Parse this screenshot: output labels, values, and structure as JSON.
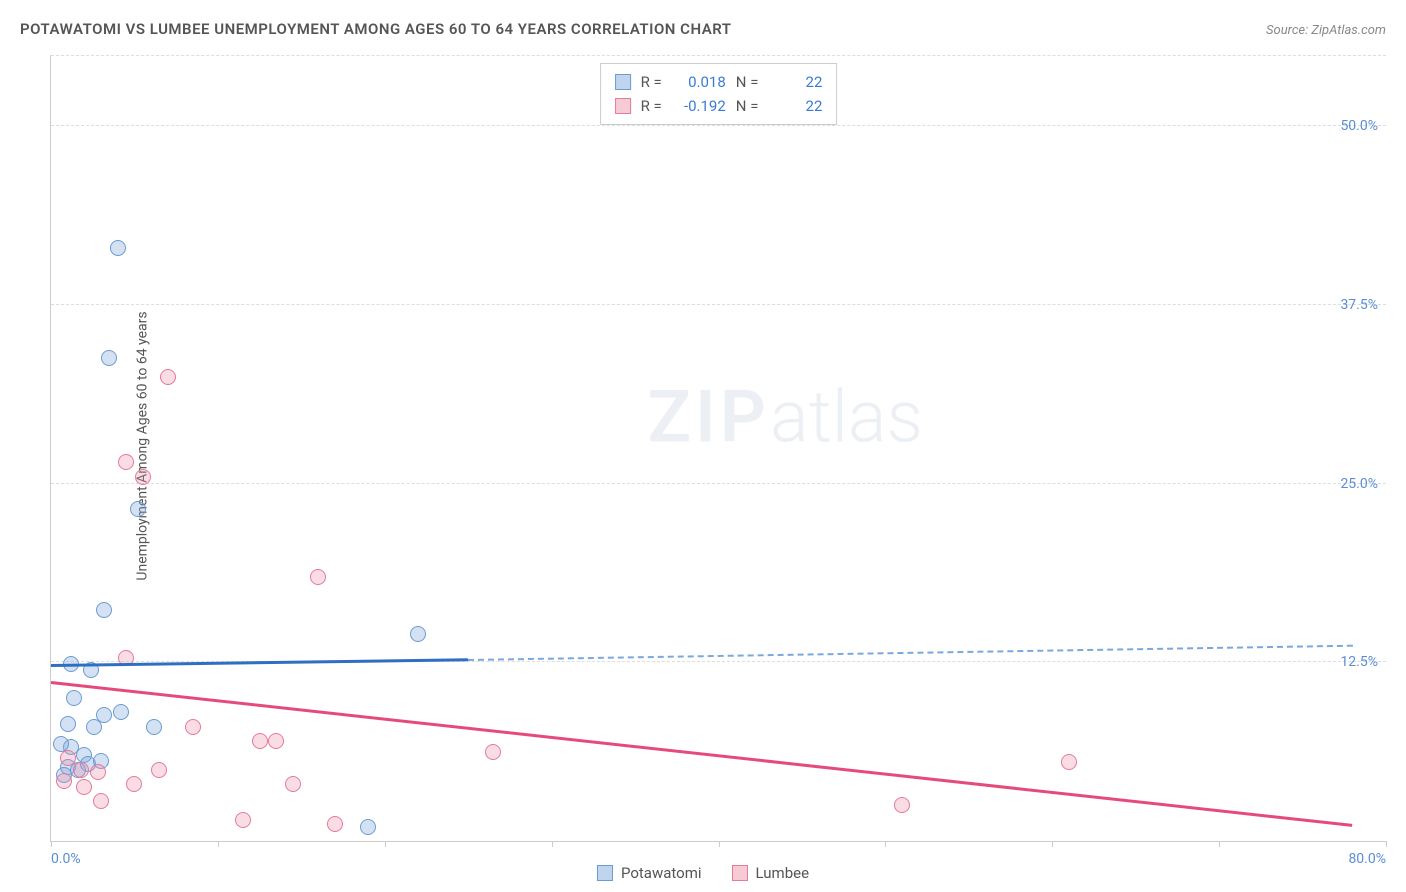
{
  "title": "POTAWATOMI VS LUMBEE UNEMPLOYMENT AMONG AGES 60 TO 64 YEARS CORRELATION CHART",
  "source": "Source: ZipAtlas.com",
  "ylabel": "Unemployment Among Ages 60 to 64 years",
  "watermark_bold": "ZIP",
  "watermark_light": "atlas",
  "chart": {
    "type": "scatter",
    "xlim": [
      0,
      80
    ],
    "ylim": [
      0,
      55
    ],
    "yticks": [
      12.5,
      25.0,
      37.5,
      50.0
    ],
    "ytick_labels": [
      "12.5%",
      "25.0%",
      "37.5%",
      "50.0%"
    ],
    "xticks": [
      0,
      10,
      20,
      30,
      40,
      50,
      60,
      70,
      80
    ],
    "x_axis_labels": {
      "left": "0.0%",
      "right": "80.0%"
    },
    "grid_color": "#dddddd",
    "axis_color": "#cccccc",
    "background_color": "#ffffff",
    "marker_size": 16,
    "series": [
      {
        "name": "Potawatomi",
        "color_fill": "rgba(130,170,220,0.35)",
        "color_border": "#6a9cd4",
        "trend_color": "#2e6fc4",
        "trend_dash_color": "#7aa8dc",
        "R": "0.018",
        "N": "22",
        "trend": {
          "x1": 0,
          "y1": 12.2,
          "x2_solid": 25,
          "y2_solid": 12.6,
          "x2": 78,
          "y2": 13.6
        },
        "points": [
          {
            "x": 4.0,
            "y": 41.5
          },
          {
            "x": 3.5,
            "y": 33.8
          },
          {
            "x": 5.2,
            "y": 23.2
          },
          {
            "x": 3.2,
            "y": 16.2
          },
          {
            "x": 22.0,
            "y": 14.5
          },
          {
            "x": 1.2,
            "y": 12.4
          },
          {
            "x": 2.4,
            "y": 12.0
          },
          {
            "x": 1.4,
            "y": 10.0
          },
          {
            "x": 3.2,
            "y": 8.8
          },
          {
            "x": 4.2,
            "y": 9.0
          },
          {
            "x": 1.0,
            "y": 8.2
          },
          {
            "x": 2.6,
            "y": 8.0
          },
          {
            "x": 6.2,
            "y": 8.0
          },
          {
            "x": 1.2,
            "y": 6.6
          },
          {
            "x": 2.0,
            "y": 6.0
          },
          {
            "x": 1.0,
            "y": 5.2
          },
          {
            "x": 1.6,
            "y": 5.0
          },
          {
            "x": 2.2,
            "y": 5.4
          },
          {
            "x": 3.0,
            "y": 5.6
          },
          {
            "x": 0.6,
            "y": 6.8
          },
          {
            "x": 19.0,
            "y": 1.0
          },
          {
            "x": 0.8,
            "y": 4.6
          }
        ]
      },
      {
        "name": "Lumbee",
        "color_fill": "rgba(235,140,165,0.3)",
        "color_border": "#e67a9a",
        "trend_color": "#e54b7a",
        "R": "-0.192",
        "N": "22",
        "trend": {
          "x1": 0,
          "y1": 11.0,
          "x2_solid": 78,
          "y2_solid": 1.0,
          "x2": 78,
          "y2": 1.0
        },
        "points": [
          {
            "x": 7.0,
            "y": 32.5
          },
          {
            "x": 4.5,
            "y": 26.5
          },
          {
            "x": 5.5,
            "y": 25.5
          },
          {
            "x": 16.0,
            "y": 18.5
          },
          {
            "x": 4.5,
            "y": 12.8
          },
          {
            "x": 8.5,
            "y": 8.0
          },
          {
            "x": 12.5,
            "y": 7.0
          },
          {
            "x": 13.5,
            "y": 7.0
          },
          {
            "x": 26.5,
            "y": 6.2
          },
          {
            "x": 1.8,
            "y": 5.0
          },
          {
            "x": 2.8,
            "y": 4.8
          },
          {
            "x": 1.0,
            "y": 5.8
          },
          {
            "x": 0.8,
            "y": 4.2
          },
          {
            "x": 2.0,
            "y": 3.8
          },
          {
            "x": 5.0,
            "y": 4.0
          },
          {
            "x": 6.5,
            "y": 5.0
          },
          {
            "x": 14.5,
            "y": 4.0
          },
          {
            "x": 3.0,
            "y": 2.8
          },
          {
            "x": 11.5,
            "y": 1.5
          },
          {
            "x": 17.0,
            "y": 1.2
          },
          {
            "x": 51.0,
            "y": 2.5
          },
          {
            "x": 61.0,
            "y": 5.5
          }
        ]
      }
    ],
    "legend_bottom": [
      "Potawatomi",
      "Lumbee"
    ],
    "stats_labels": {
      "R": "R =",
      "N": "N ="
    }
  }
}
